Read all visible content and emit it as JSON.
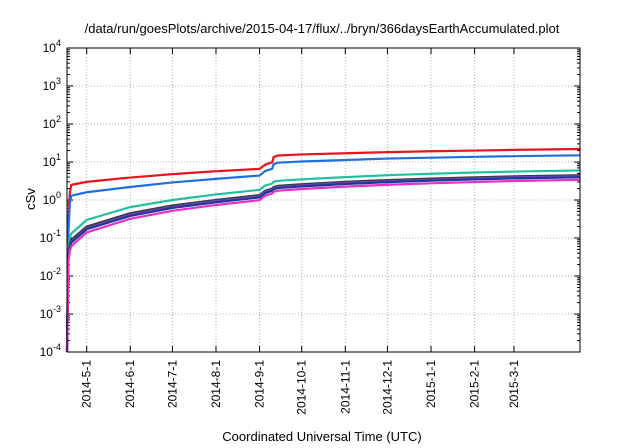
{
  "chart_data": {
    "type": "line",
    "title": "/data/run/goesPlots/archive/2015-04-17/flux/../bryn/366daysEarthAccumulated.plot",
    "xlabel": "Coordinated Universal Time (UTC)",
    "ylabel": "cSv",
    "yscale": "log",
    "grid": true,
    "xlim": [
      "2014-04-17",
      "2015-04-17"
    ],
    "ylim": [
      0.0001,
      10000
    ],
    "x_ticks": [
      {
        "date": "2014-05-01",
        "label": "2014-5-1"
      },
      {
        "date": "2014-06-01",
        "label": "2014-6-1"
      },
      {
        "date": "2014-07-01",
        "label": "2014-7-1"
      },
      {
        "date": "2014-08-01",
        "label": "2014-8-1"
      },
      {
        "date": "2014-09-01",
        "label": "2014-9-1"
      },
      {
        "date": "2014-10-01",
        "label": "2014-10-1"
      },
      {
        "date": "2014-11-01",
        "label": "2014-11-1"
      },
      {
        "date": "2014-12-01",
        "label": "2014-12-1"
      },
      {
        "date": "2015-01-01",
        "label": "2015-1-1"
      },
      {
        "date": "2015-02-01",
        "label": "2015-2-1"
      },
      {
        "date": "2015-03-01",
        "label": "2015-3-1"
      }
    ],
    "y_ticks": [
      {
        "value": 0.0001,
        "base": "10",
        "exp": "-4"
      },
      {
        "value": 0.001,
        "base": "10",
        "exp": "-3"
      },
      {
        "value": 0.01,
        "base": "10",
        "exp": "-2"
      },
      {
        "value": 0.1,
        "base": "10",
        "exp": "-1"
      },
      {
        "value": 1,
        "base": "10",
        "exp": "0"
      },
      {
        "value": 10,
        "base": "10",
        "exp": "1"
      },
      {
        "value": 100,
        "base": "10",
        "exp": "2"
      },
      {
        "value": 1000,
        "base": "10",
        "exp": "3"
      },
      {
        "value": 10000,
        "base": "10",
        "exp": "4"
      }
    ],
    "series": [
      {
        "color": "#e8141c",
        "points": [
          [
            "2014-04-17",
            0.0001
          ],
          [
            "2014-04-18",
            0.3
          ],
          [
            "2014-04-19",
            1.5
          ],
          [
            "2014-04-20",
            2.5
          ],
          [
            "2014-05-01",
            3.0
          ],
          [
            "2014-06-01",
            3.9
          ],
          [
            "2014-07-01",
            4.8
          ],
          [
            "2014-08-01",
            5.7
          ],
          [
            "2014-09-01",
            6.6
          ],
          [
            "2014-09-05",
            8.5
          ],
          [
            "2014-09-10",
            9.8
          ],
          [
            "2014-09-11",
            13.5
          ],
          [
            "2014-09-14",
            14.8
          ],
          [
            "2014-10-01",
            15.8
          ],
          [
            "2014-11-01",
            17.0
          ],
          [
            "2014-12-01",
            18.2
          ],
          [
            "2015-01-01",
            19.2
          ],
          [
            "2015-02-01",
            20.0
          ],
          [
            "2015-03-01",
            20.8
          ],
          [
            "2015-04-17",
            22.0
          ]
        ]
      },
      {
        "color": "#1f6fe0",
        "points": [
          [
            "2014-04-17",
            0.0001
          ],
          [
            "2014-04-18",
            0.15
          ],
          [
            "2014-04-19",
            0.8
          ],
          [
            "2014-04-20",
            1.3
          ],
          [
            "2014-05-01",
            1.6
          ],
          [
            "2014-06-01",
            2.2
          ],
          [
            "2014-07-01",
            2.9
          ],
          [
            "2014-08-01",
            3.6
          ],
          [
            "2014-09-01",
            4.4
          ],
          [
            "2014-09-05",
            5.8
          ],
          [
            "2014-09-10",
            6.6
          ],
          [
            "2014-09-11",
            8.8
          ],
          [
            "2014-09-14",
            9.6
          ],
          [
            "2014-10-01",
            10.3
          ],
          [
            "2014-11-01",
            11.3
          ],
          [
            "2014-12-01",
            12.3
          ],
          [
            "2015-01-01",
            13.0
          ],
          [
            "2015-02-01",
            13.7
          ],
          [
            "2015-03-01",
            14.2
          ],
          [
            "2015-04-17",
            15.0
          ]
        ]
      },
      {
        "color": "#22c0a0",
        "points": [
          [
            "2014-04-17",
            0.0001
          ],
          [
            "2014-04-18",
            0.06
          ],
          [
            "2014-04-19",
            0.1
          ],
          [
            "2014-04-20",
            0.13
          ],
          [
            "2014-05-01",
            0.3
          ],
          [
            "2014-06-01",
            0.65
          ],
          [
            "2014-07-01",
            1.0
          ],
          [
            "2014-08-01",
            1.4
          ],
          [
            "2014-09-01",
            1.85
          ],
          [
            "2014-09-05",
            2.4
          ],
          [
            "2014-09-10",
            2.7
          ],
          [
            "2014-09-11",
            3.0
          ],
          [
            "2014-09-14",
            3.2
          ],
          [
            "2014-10-01",
            3.5
          ],
          [
            "2014-11-01",
            4.0
          ],
          [
            "2014-12-01",
            4.5
          ],
          [
            "2015-01-01",
            4.9
          ],
          [
            "2015-02-01",
            5.3
          ],
          [
            "2015-03-01",
            5.6
          ],
          [
            "2015-04-17",
            6.0
          ]
        ]
      },
      {
        "color": "#3a3a3a",
        "points": [
          [
            "2014-04-17",
            0.0001
          ],
          [
            "2014-04-18",
            0.04
          ],
          [
            "2014-04-19",
            0.07
          ],
          [
            "2014-04-20",
            0.09
          ],
          [
            "2014-05-01",
            0.2
          ],
          [
            "2014-06-01",
            0.45
          ],
          [
            "2014-07-01",
            0.72
          ],
          [
            "2014-08-01",
            1.0
          ],
          [
            "2014-09-01",
            1.35
          ],
          [
            "2014-09-05",
            1.75
          ],
          [
            "2014-09-10",
            2.0
          ],
          [
            "2014-09-11",
            2.2
          ],
          [
            "2014-09-14",
            2.35
          ],
          [
            "2014-10-01",
            2.6
          ],
          [
            "2014-11-01",
            3.0
          ],
          [
            "2014-12-01",
            3.35
          ],
          [
            "2015-01-01",
            3.65
          ],
          [
            "2015-02-01",
            3.95
          ],
          [
            "2015-03-01",
            4.2
          ],
          [
            "2015-04-17",
            4.5
          ]
        ]
      },
      {
        "color": "#7b3fc0",
        "points": [
          [
            "2014-04-17",
            0.0001
          ],
          [
            "2014-04-18",
            0.035
          ],
          [
            "2014-04-19",
            0.06
          ],
          [
            "2014-04-20",
            0.08
          ],
          [
            "2014-05-01",
            0.18
          ],
          [
            "2014-06-01",
            0.41
          ],
          [
            "2014-07-01",
            0.66
          ],
          [
            "2014-08-01",
            0.93
          ],
          [
            "2014-09-01",
            1.25
          ],
          [
            "2014-09-05",
            1.62
          ],
          [
            "2014-09-10",
            1.85
          ],
          [
            "2014-09-11",
            2.05
          ],
          [
            "2014-09-14",
            2.2
          ],
          [
            "2014-10-01",
            2.42
          ],
          [
            "2014-11-01",
            2.8
          ],
          [
            "2014-12-01",
            3.12
          ],
          [
            "2015-01-01",
            3.4
          ],
          [
            "2015-02-01",
            3.68
          ],
          [
            "2015-03-01",
            3.92
          ],
          [
            "2015-04-17",
            4.2
          ]
        ]
      },
      {
        "color": "#1a3a9a",
        "points": [
          [
            "2014-04-17",
            0.0001
          ],
          [
            "2014-04-18",
            0.03
          ],
          [
            "2014-04-19",
            0.055
          ],
          [
            "2014-04-20",
            0.075
          ],
          [
            "2014-05-01",
            0.17
          ],
          [
            "2014-06-01",
            0.38
          ],
          [
            "2014-07-01",
            0.62
          ],
          [
            "2014-08-01",
            0.87
          ],
          [
            "2014-09-01",
            1.17
          ],
          [
            "2014-09-05",
            1.52
          ],
          [
            "2014-09-10",
            1.74
          ],
          [
            "2014-09-11",
            1.93
          ],
          [
            "2014-09-14",
            2.07
          ],
          [
            "2014-10-01",
            2.28
          ],
          [
            "2014-11-01",
            2.64
          ],
          [
            "2014-12-01",
            2.95
          ],
          [
            "2015-01-01",
            3.22
          ],
          [
            "2015-02-01",
            3.48
          ],
          [
            "2015-03-01",
            3.71
          ],
          [
            "2015-04-17",
            3.95
          ]
        ]
      },
      {
        "color": "#e82fc8",
        "points": [
          [
            "2014-04-17",
            0.0001
          ],
          [
            "2014-04-18",
            0.025
          ],
          [
            "2014-04-19",
            0.045
          ],
          [
            "2014-04-20",
            0.06
          ],
          [
            "2014-05-01",
            0.14
          ],
          [
            "2014-06-01",
            0.32
          ],
          [
            "2014-07-01",
            0.52
          ],
          [
            "2014-08-01",
            0.74
          ],
          [
            "2014-09-01",
            0.99
          ],
          [
            "2014-09-05",
            1.3
          ],
          [
            "2014-09-10",
            1.48
          ],
          [
            "2014-09-11",
            1.64
          ],
          [
            "2014-09-14",
            1.76
          ],
          [
            "2014-10-01",
            1.95
          ],
          [
            "2014-11-01",
            2.25
          ],
          [
            "2014-12-01",
            2.52
          ],
          [
            "2015-01-01",
            2.75
          ],
          [
            "2015-02-01",
            2.97
          ],
          [
            "2015-03-01",
            3.16
          ],
          [
            "2015-04-17",
            3.4
          ]
        ]
      }
    ]
  }
}
